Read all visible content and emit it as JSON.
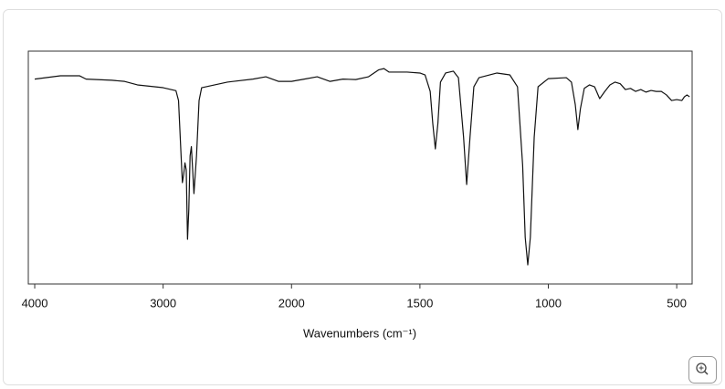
{
  "chart_data": {
    "type": "line",
    "xlabel": "Wavenumbers (cm⁻¹)",
    "xlim": [
      4050,
      440
    ],
    "x_break": 2000,
    "ylim": [
      0,
      100
    ],
    "xticks": [
      4000,
      3000,
      2000,
      1500,
      1000,
      500
    ],
    "yticks": [],
    "grid": false,
    "color": "#111111",
    "x": [
      4000,
      3800,
      3650,
      3600,
      3400,
      3300,
      3200,
      3000,
      2900,
      2880,
      2860,
      2850,
      2840,
      2830,
      2820,
      2810,
      2800,
      2790,
      2780,
      2770,
      2760,
      2740,
      2720,
      2700,
      2500,
      2300,
      2200,
      2100,
      2000,
      1950,
      1900,
      1850,
      1800,
      1750,
      1700,
      1660,
      1640,
      1620,
      1550,
      1500,
      1480,
      1460,
      1450,
      1440,
      1430,
      1420,
      1400,
      1370,
      1350,
      1330,
      1318,
      1305,
      1290,
      1270,
      1200,
      1150,
      1120,
      1100,
      1090,
      1080,
      1070,
      1055,
      1040,
      1000,
      930,
      910,
      895,
      885,
      875,
      860,
      840,
      820,
      800,
      780,
      760,
      740,
      720,
      700,
      680,
      660,
      640,
      620,
      600,
      580,
      560,
      540,
      520,
      500,
      480,
      470,
      460,
      450
    ],
    "values": [
      88,
      89.4,
      89.4,
      88,
      87.5,
      87,
      85.5,
      84.3,
      83,
      78.8,
      55,
      43.5,
      47,
      52,
      49,
      19.2,
      31.8,
      55,
      59,
      49,
      38.8,
      55,
      78.8,
      84.3,
      86.7,
      88,
      89,
      87,
      87,
      88,
      89,
      87,
      88,
      87.8,
      89,
      92,
      92.5,
      91,
      91,
      90.6,
      89.8,
      82.7,
      69,
      58,
      69,
      86.7,
      90.6,
      91.4,
      88.6,
      63,
      42.7,
      63,
      84.7,
      88.6,
      90.6,
      89.8,
      84.7,
      51,
      20,
      8.2,
      20,
      63,
      84.7,
      88.2,
      88.6,
      86.7,
      77,
      66.3,
      75.3,
      84,
      85.5,
      84.7,
      79.6,
      82.7,
      85.5,
      86.7,
      86,
      83.5,
      84,
      82.7,
      83.5,
      82.4,
      83.1,
      82.7,
      82.7,
      81.2,
      78.8,
      79.2,
      78.8,
      80.4,
      81.2,
      80.4
    ]
  }
}
